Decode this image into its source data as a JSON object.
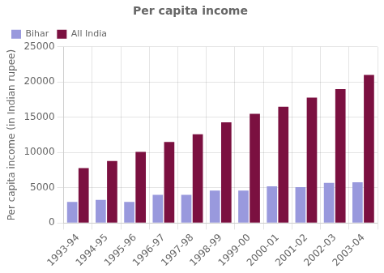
{
  "chart_data": {
    "type": "bar",
    "title": "Per capita income",
    "ylabel": "Per capita income (in Indian rupee)",
    "categories": [
      "1993-94",
      "1994-95",
      "1995-96",
      "1996-97",
      "1997-98",
      "1998-99",
      "1999-00",
      "2000-01",
      "2001-02",
      "2002-03",
      "2003-04"
    ],
    "series": [
      {
        "name": "Bihar",
        "color": "#9999dd",
        "values": [
          3000,
          3300,
          3000,
          4000,
          4000,
          4600,
          4600,
          5200,
          5100,
          5700,
          5800
        ]
      },
      {
        "name": "All India",
        "color": "#7b1040",
        "values": [
          7800,
          8800,
          10100,
          11500,
          12600,
          14300,
          15500,
          16500,
          17800,
          19000,
          21000
        ]
      }
    ],
    "ylim": [
      0,
      25000
    ],
    "yticks": [
      0,
      5000,
      10000,
      15000,
      20000,
      25000
    ],
    "grid": true,
    "legend": "upper left"
  }
}
